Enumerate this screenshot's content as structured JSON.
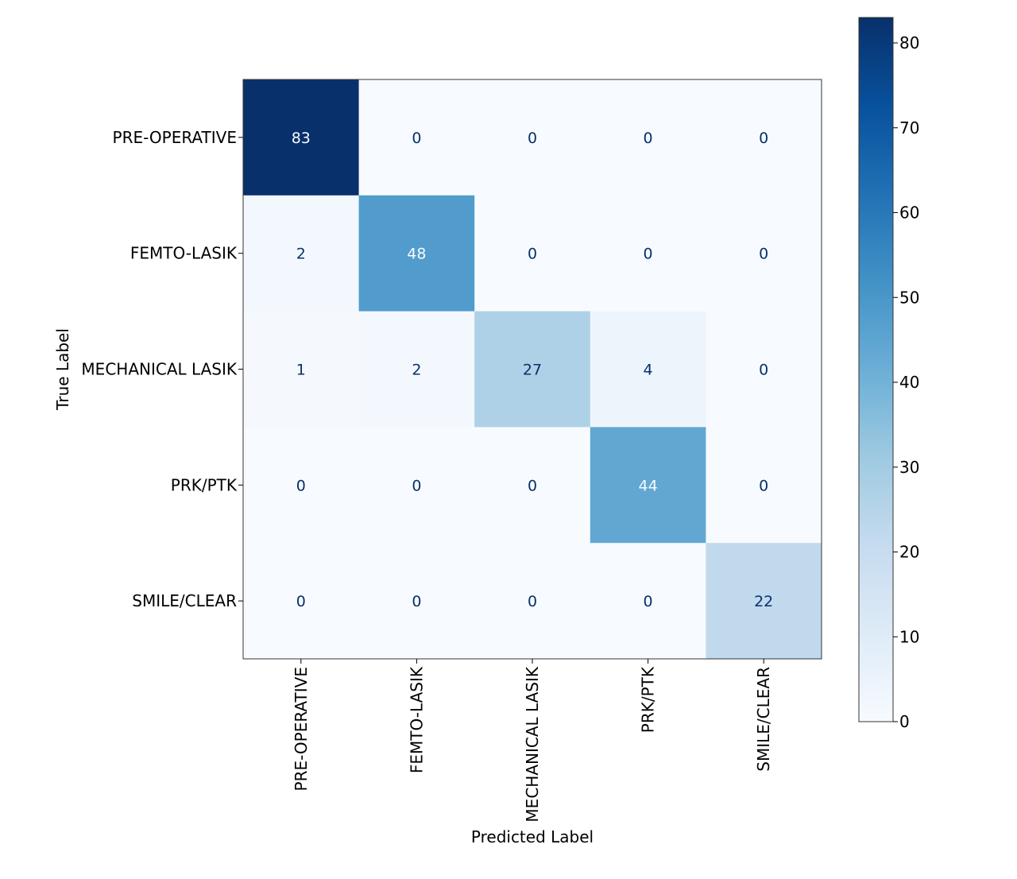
{
  "chart_data": {
    "type": "heatmap",
    "title": "",
    "xlabel": "Predicted Label",
    "ylabel": "True Label",
    "x_categories": [
      "PRE-OPERATIVE",
      "FEMTO-LASIK",
      "MECHANICAL LASIK",
      "PRK/PTK",
      "SMILE/CLEAR"
    ],
    "y_categories": [
      "PRE-OPERATIVE",
      "FEMTO-LASIK",
      "MECHANICAL LASIK",
      "PRK/PTK",
      "SMILE/CLEAR"
    ],
    "values": [
      [
        83,
        0,
        0,
        0,
        0
      ],
      [
        2,
        48,
        0,
        0,
        0
      ],
      [
        1,
        2,
        27,
        4,
        0
      ],
      [
        0,
        0,
        0,
        44,
        0
      ],
      [
        0,
        0,
        0,
        0,
        22
      ]
    ],
    "colorscale": "Blues",
    "colorbar": {
      "range": [
        0,
        83
      ],
      "ticks": [
        0,
        10,
        20,
        30,
        40,
        50,
        60,
        70,
        80
      ],
      "position": "right"
    },
    "grid": false
  }
}
